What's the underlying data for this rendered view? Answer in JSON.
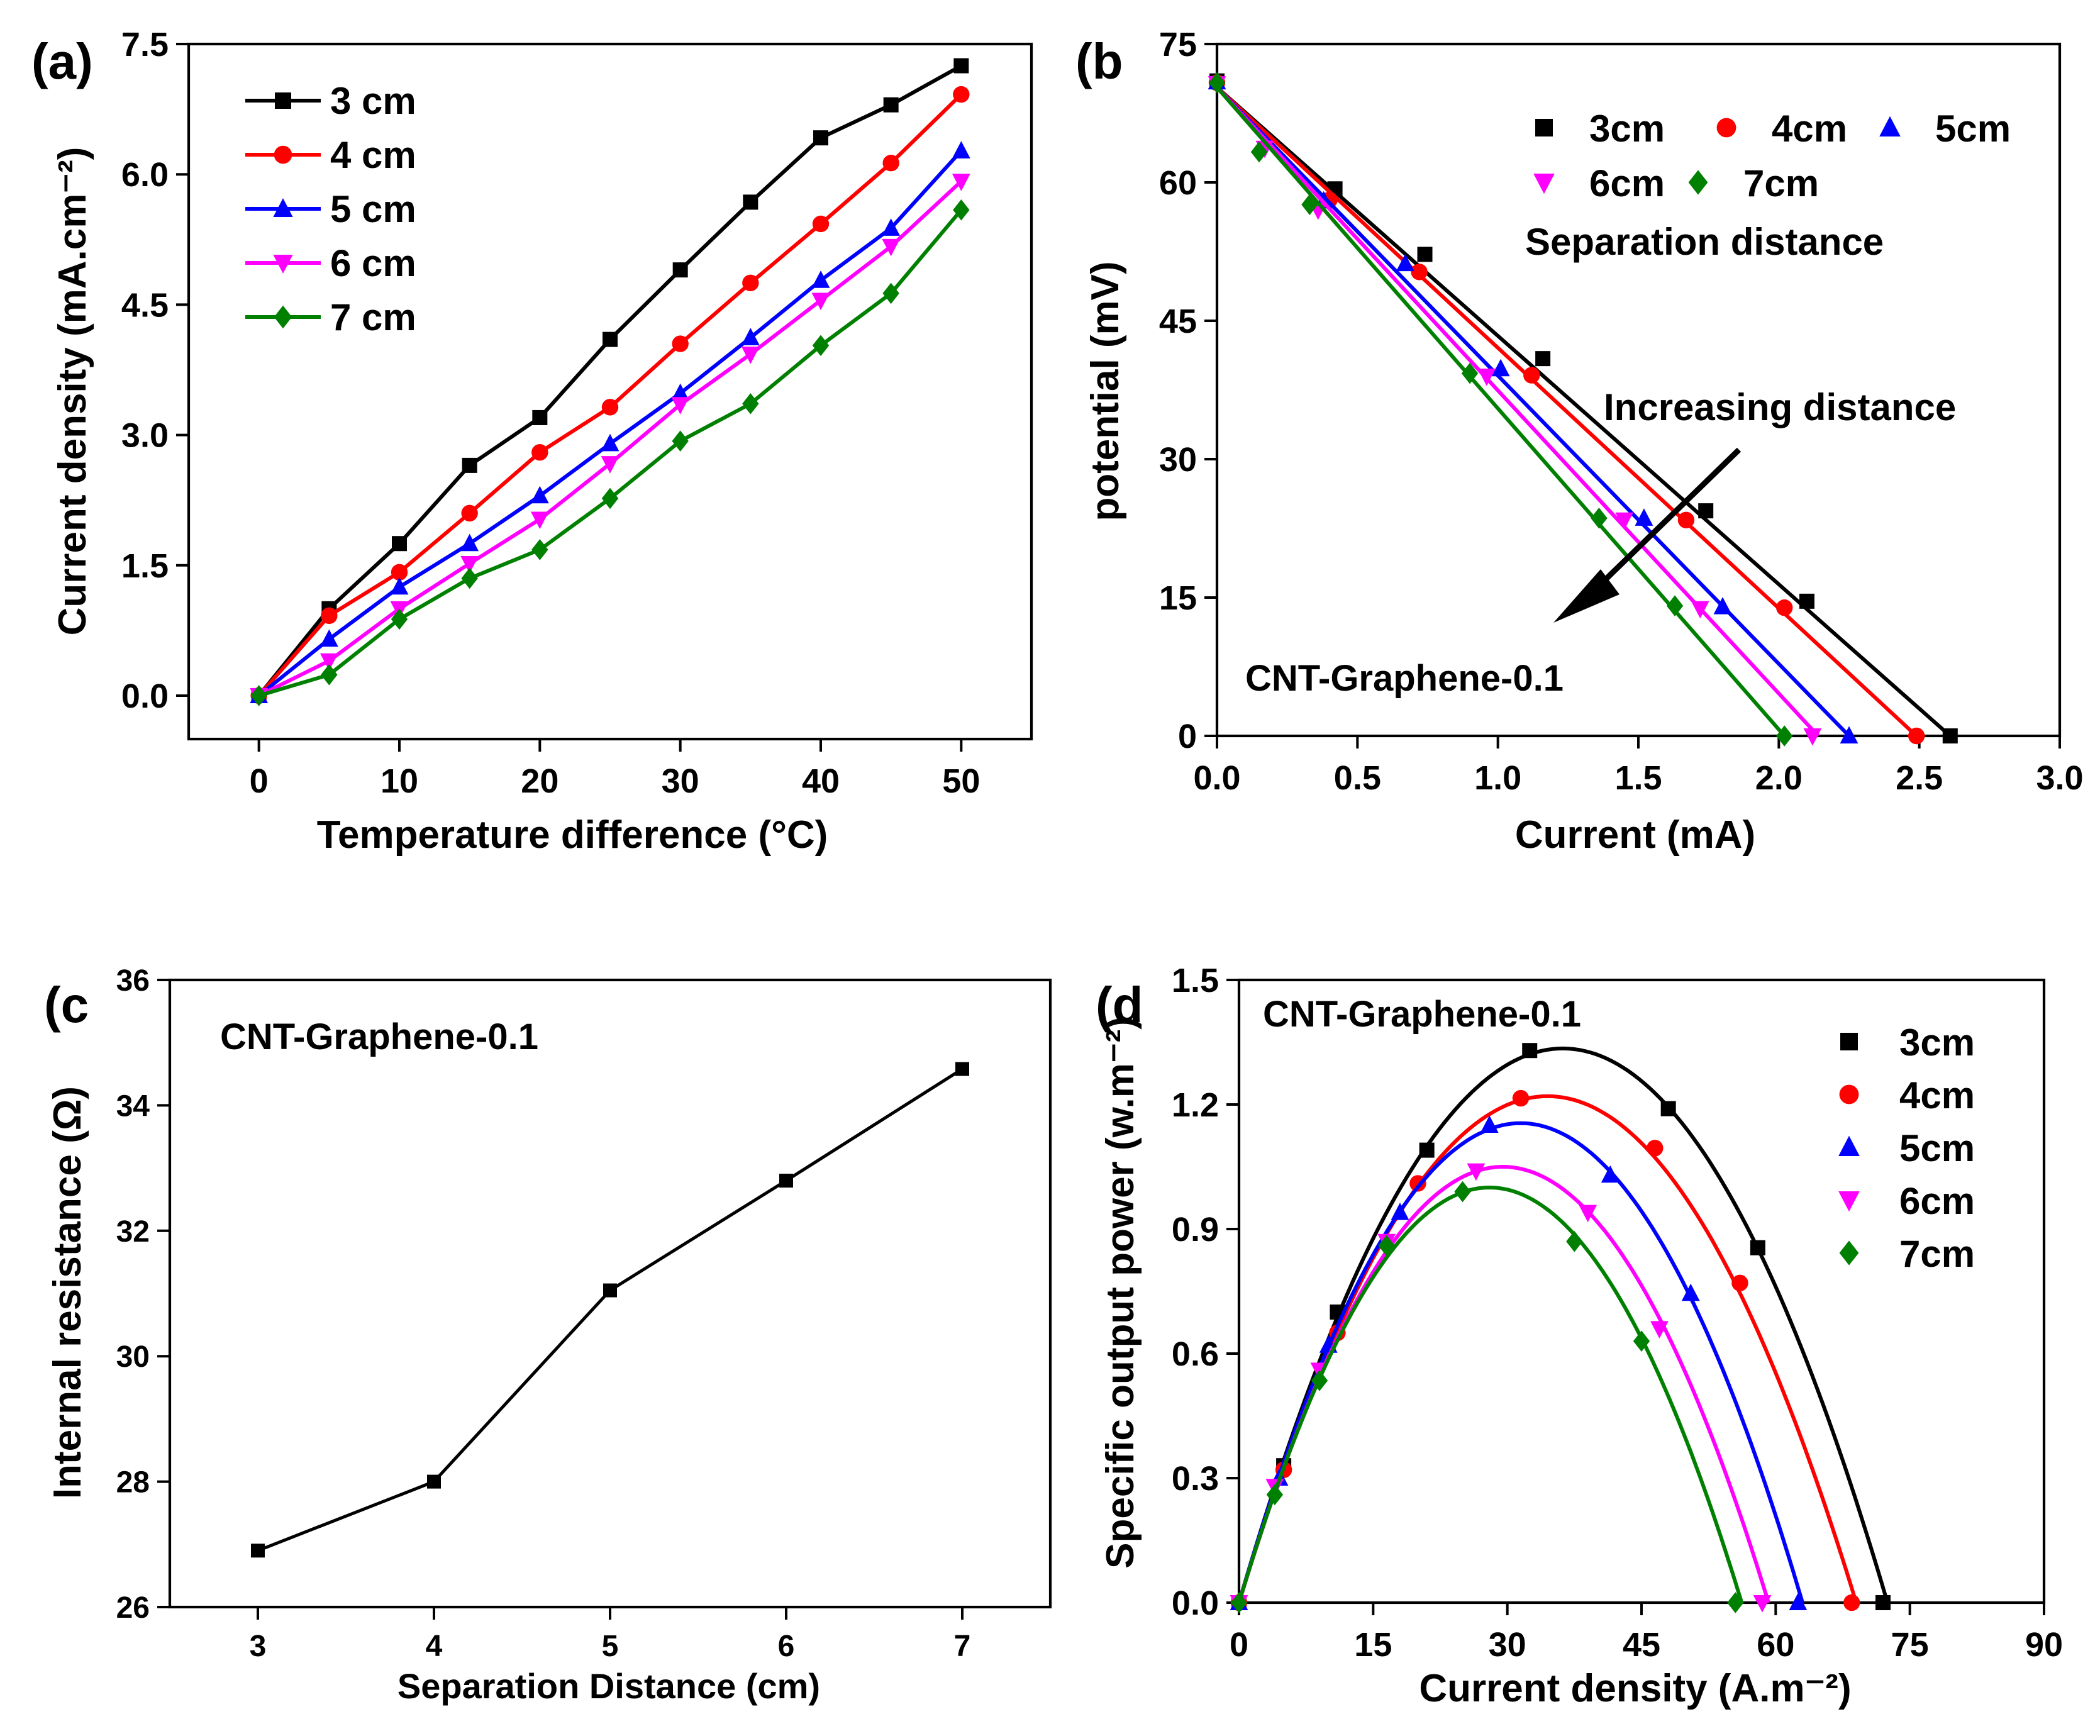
{
  "colors": {
    "3": "#000000",
    "4": "#ff0000",
    "5": "#0000ff",
    "6": "#ff00ff",
    "7": "#008000"
  },
  "chart_data": [
    {
      "panel": "(a)",
      "type": "line",
      "xlabel": "Temperature difference",
      "xlabel_unit": "(°C)",
      "ylabel": "Current density (mA.cm⁻²)",
      "xlim": [
        -5,
        55
      ],
      "ylim": [
        -0.5,
        7.5
      ],
      "xticks": [
        0,
        10,
        20,
        30,
        40,
        50
      ],
      "yticks": [
        "0.0",
        "1.5",
        "3.0",
        "4.5",
        "6.0",
        "7.5"
      ],
      "legend_position": "top-left",
      "x": [
        0,
        5,
        10,
        15,
        20,
        25,
        30,
        35,
        40,
        45,
        50
      ],
      "series": [
        {
          "name": "3 cm",
          "key": "3",
          "marker": "square",
          "values": [
            0.0,
            1.0,
            1.75,
            2.65,
            3.2,
            4.1,
            4.9,
            5.68,
            6.42,
            6.8,
            7.25
          ]
        },
        {
          "name": "4 cm",
          "key": "4",
          "marker": "circle",
          "values": [
            0.0,
            0.92,
            1.42,
            2.1,
            2.8,
            3.32,
            4.05,
            4.75,
            5.43,
            6.13,
            6.92
          ]
        },
        {
          "name": "5 cm",
          "key": "5",
          "marker": "triangle-up",
          "values": [
            0.0,
            0.65,
            1.25,
            1.75,
            2.3,
            2.9,
            3.48,
            4.12,
            4.78,
            5.38,
            6.27
          ]
        },
        {
          "name": "6 cm",
          "key": "6",
          "marker": "triangle-down",
          "values": [
            0.0,
            0.4,
            1.0,
            1.52,
            2.03,
            2.67,
            3.35,
            3.93,
            4.55,
            5.17,
            5.92
          ]
        },
        {
          "name": "7 cm",
          "key": "7",
          "marker": "diamond",
          "values": [
            0.0,
            0.24,
            0.88,
            1.35,
            1.68,
            2.27,
            2.93,
            3.36,
            4.03,
            4.63,
            5.59
          ]
        }
      ]
    },
    {
      "panel": "(b",
      "type": "scatter",
      "xlabel": "Current  (mA)",
      "ylabel": "potential (mV)",
      "xlim": [
        0,
        3
      ],
      "ylim": [
        0,
        75
      ],
      "xticks": [
        "0.0",
        "0.5",
        "1.0",
        "1.5",
        "2.0",
        "2.5",
        "3.0"
      ],
      "yticks": [
        "0",
        "15",
        "30",
        "45",
        "60",
        "75"
      ],
      "legend_title": "Separation distance",
      "annotation": "Increasing distance",
      "sample_label": "CNT-Graphene-0.1",
      "series": [
        {
          "name": "3cm",
          "key": "3",
          "marker": "square",
          "fit": [
            [
              0,
              70.3
            ],
            [
              2.61,
              0
            ]
          ],
          "points": [
            [
              0,
              71
            ],
            [
              0.42,
              59.3
            ],
            [
              0.74,
              52.2
            ],
            [
              1.16,
              40.9
            ],
            [
              1.74,
              24.4
            ],
            [
              2.1,
              14.6
            ],
            [
              2.61,
              0
            ]
          ]
        },
        {
          "name": "4cm",
          "key": "4",
          "marker": "circle",
          "fit": [
            [
              0,
              70.3
            ],
            [
              2.49,
              0
            ]
          ],
          "points": [
            [
              0,
              70.8
            ],
            [
              0.4,
              58.1
            ],
            [
              0.72,
              50.3
            ],
            [
              1.12,
              39.1
            ],
            [
              1.67,
              23.4
            ],
            [
              2.02,
              13.9
            ],
            [
              2.49,
              0
            ]
          ]
        },
        {
          "name": "5cm",
          "key": "5",
          "marker": "triangle-up",
          "fit": [
            [
              0,
              70.3
            ],
            [
              2.25,
              0
            ]
          ],
          "points": [
            [
              0,
              70.9
            ],
            [
              0.38,
              58.0
            ],
            [
              0.67,
              51.2
            ],
            [
              1.01,
              39.8
            ],
            [
              1.52,
              23.6
            ],
            [
              1.8,
              14.0
            ],
            [
              2.25,
              0
            ]
          ]
        },
        {
          "name": "6cm",
          "key": "6",
          "marker": "triangle-down",
          "fit": [
            [
              0,
              70.3
            ],
            [
              2.14,
              0
            ]
          ],
          "points": [
            [
              0,
              70.7
            ],
            [
              0.17,
              63.7
            ],
            [
              0.36,
              57.0
            ],
            [
              0.96,
              39.0
            ],
            [
              1.45,
              23.4
            ],
            [
              1.72,
              13.8
            ],
            [
              2.12,
              0
            ]
          ]
        },
        {
          "name": "7cm",
          "key": "7",
          "marker": "diamond",
          "fit": [
            [
              0,
              70.3
            ],
            [
              2.02,
              0
            ]
          ],
          "points": [
            [
              0,
              70.8
            ],
            [
              0.15,
              63.3
            ],
            [
              0.33,
              57.6
            ],
            [
              0.9,
              39.3
            ],
            [
              1.36,
              23.6
            ],
            [
              1.63,
              14.1
            ],
            [
              2.02,
              0
            ]
          ]
        }
      ]
    },
    {
      "panel": "(c",
      "type": "line",
      "xlabel": "Separation Distance (cm)",
      "ylabel": "Internal resistance (Ω)",
      "xlim": [
        2.5,
        7.5
      ],
      "ylim": [
        26,
        36
      ],
      "xticks": [
        "3",
        "4",
        "5",
        "6",
        "7"
      ],
      "yticks": [
        "26",
        "28",
        "30",
        "32",
        "34",
        "36"
      ],
      "sample_label": "CNT-Graphene-0.1",
      "series": [
        {
          "name": "Internal resistance",
          "key": "3",
          "marker": "square",
          "x": [
            3,
            4,
            5,
            6,
            7
          ],
          "values": [
            26.9,
            28.0,
            31.05,
            32.8,
            34.58
          ]
        }
      ]
    },
    {
      "panel": "(d",
      "type": "scatter",
      "xlabel": "Current density (A.m⁻²)",
      "ylabel": "Specific output power (w.m⁻²)",
      "xlim": [
        0,
        90
      ],
      "ylim": [
        0,
        1.5
      ],
      "xticks": [
        "0",
        "15",
        "30",
        "45",
        "60",
        "75",
        "90"
      ],
      "yticks": [
        "0.0",
        "0.3",
        "0.6",
        "0.9",
        "1.2",
        "1.5"
      ],
      "sample_label": "CNT-Graphene-0.1",
      "series": [
        {
          "name": "3cm",
          "key": "3",
          "marker": "square",
          "fit_peak": [
            36.2,
            1.335
          ],
          "fit_zero": 72.5,
          "points": [
            [
              0,
              0
            ],
            [
              5,
              0.33
            ],
            [
              11,
              0.7
            ],
            [
              21,
              1.09
            ],
            [
              32.5,
              1.33
            ],
            [
              48,
              1.19
            ],
            [
              58,
              0.855
            ],
            [
              72,
              0
            ]
          ]
        },
        {
          "name": "4cm",
          "key": "4",
          "marker": "circle",
          "fit_peak": [
            34.5,
            1.22
          ],
          "fit_zero": 69,
          "points": [
            [
              0,
              0
            ],
            [
              5,
              0.32
            ],
            [
              11,
              0.65
            ],
            [
              20,
              1.01
            ],
            [
              31.5,
              1.215
            ],
            [
              46.5,
              1.095
            ],
            [
              56,
              0.77
            ],
            [
              68.5,
              0
            ]
          ]
        },
        {
          "name": "5cm",
          "key": "5",
          "marker": "triangle-up",
          "fit_peak": [
            31.5,
            1.155
          ],
          "fit_zero": 63,
          "points": [
            [
              0,
              0
            ],
            [
              4.5,
              0.3
            ],
            [
              10,
              0.62
            ],
            [
              18,
              0.94
            ],
            [
              28,
              1.15
            ],
            [
              41.5,
              1.03
            ],
            [
              50.5,
              0.745
            ],
            [
              62.5,
              0
            ]
          ]
        },
        {
          "name": "6cm",
          "key": "6",
          "marker": "triangle-down",
          "fit_peak": [
            29.5,
            1.05
          ],
          "fit_zero": 59.2,
          "points": [
            [
              0,
              0
            ],
            [
              4,
              0.28
            ],
            [
              9,
              0.56
            ],
            [
              16.5,
              0.87
            ],
            [
              26.5,
              1.04
            ],
            [
              39,
              0.94
            ],
            [
              47,
              0.66
            ],
            [
              58.5,
              0
            ]
          ]
        },
        {
          "name": "7cm",
          "key": "7",
          "marker": "diamond",
          "fit_peak": [
            28,
            1.0
          ],
          "fit_zero": 56.2,
          "points": [
            [
              0,
              0
            ],
            [
              4,
              0.26
            ],
            [
              9,
              0.535
            ],
            [
              16.5,
              0.86
            ],
            [
              25,
              0.99
            ],
            [
              37.5,
              0.87
            ],
            [
              45,
              0.63
            ],
            [
              55.5,
              0
            ]
          ]
        }
      ]
    }
  ]
}
